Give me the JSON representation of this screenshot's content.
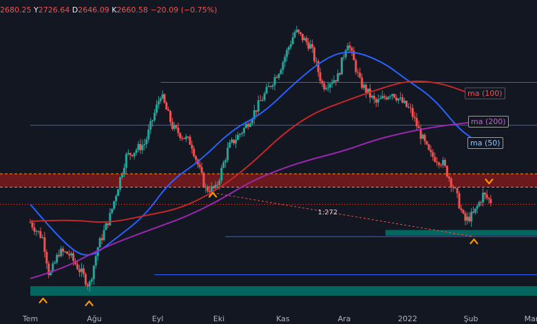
{
  "ohlc_header": {
    "o_value": "2680.25",
    "h_label": "Y",
    "h_value": "2726.64",
    "l_label": "D",
    "l_value": "2646.09",
    "c_label": "K",
    "c_value": "2660.58",
    "change": "−20.09 (−0.75%)"
  },
  "colors": {
    "background": "#131722",
    "up": "#26a69a",
    "down": "#ef5350",
    "ma50": "#2962ff",
    "ma100": "#c62828",
    "ma200": "#9c27b0",
    "resistance_zone": "#b71c1c",
    "support_zone": "#00897b",
    "marker": "#ff9800",
    "hline": "#2962ff"
  },
  "chart_data": {
    "type": "candlestick",
    "x_ticks": [
      "Tem",
      "Ağu",
      "Eyl",
      "Eki",
      "Kas",
      "Ara",
      "2022",
      "Şub",
      "Mar"
    ],
    "x_tick_months": [
      0,
      1,
      2,
      3,
      4,
      5,
      6,
      7,
      8
    ],
    "ylim": [
      1560,
      3080
    ],
    "price_key": [
      {
        "m": 0.0,
        "p": 1985
      },
      {
        "m": 0.2,
        "p": 1900
      },
      {
        "m": 0.3,
        "p": 1700
      },
      {
        "m": 0.45,
        "p": 1830
      },
      {
        "m": 0.6,
        "p": 1820
      },
      {
        "m": 0.8,
        "p": 1720
      },
      {
        "m": 0.92,
        "p": 1650
      },
      {
        "m": 1.05,
        "p": 1850
      },
      {
        "m": 1.25,
        "p": 2020
      },
      {
        "m": 1.5,
        "p": 2330
      },
      {
        "m": 1.8,
        "p": 2400
      },
      {
        "m": 2.05,
        "p": 2660
      },
      {
        "m": 2.25,
        "p": 2480
      },
      {
        "m": 2.55,
        "p": 2400
      },
      {
        "m": 2.78,
        "p": 2160
      },
      {
        "m": 2.95,
        "p": 2160
      },
      {
        "m": 3.15,
        "p": 2380
      },
      {
        "m": 3.4,
        "p": 2480
      },
      {
        "m": 3.65,
        "p": 2620
      },
      {
        "m": 3.95,
        "p": 2790
      },
      {
        "m": 4.2,
        "p": 2990
      },
      {
        "m": 4.45,
        "p": 2910
      },
      {
        "m": 4.65,
        "p": 2700
      },
      {
        "m": 4.9,
        "p": 2750
      },
      {
        "m": 5.05,
        "p": 2940
      },
      {
        "m": 5.25,
        "p": 2720
      },
      {
        "m": 5.5,
        "p": 2610
      },
      {
        "m": 5.75,
        "p": 2670
      },
      {
        "m": 6.05,
        "p": 2570
      },
      {
        "m": 6.2,
        "p": 2450
      },
      {
        "m": 6.35,
        "p": 2340
      },
      {
        "m": 6.55,
        "p": 2300
      },
      {
        "m": 6.75,
        "p": 2150
      },
      {
        "m": 6.9,
        "p": 1990
      },
      {
        "m": 7.05,
        "p": 2030
      },
      {
        "m": 7.2,
        "p": 2130
      },
      {
        "m": 7.35,
        "p": 2090
      }
    ],
    "series": [
      {
        "name": "ma (50)",
        "color": "#2962ff",
        "points": [
          {
            "m": 0.0,
            "p": 2080
          },
          {
            "m": 0.5,
            "p": 1880
          },
          {
            "m": 0.9,
            "p": 1790
          },
          {
            "m": 1.3,
            "p": 1890
          },
          {
            "m": 1.8,
            "p": 2020
          },
          {
            "m": 2.2,
            "p": 2200
          },
          {
            "m": 2.7,
            "p": 2310
          },
          {
            "m": 3.2,
            "p": 2470
          },
          {
            "m": 3.7,
            "p": 2560
          },
          {
            "m": 4.2,
            "p": 2720
          },
          {
            "m": 4.7,
            "p": 2850
          },
          {
            "m": 5.1,
            "p": 2890
          },
          {
            "m": 5.6,
            "p": 2830
          },
          {
            "m": 6.0,
            "p": 2730
          },
          {
            "m": 6.4,
            "p": 2640
          },
          {
            "m": 6.8,
            "p": 2480
          },
          {
            "m": 7.0,
            "p": 2430
          }
        ]
      },
      {
        "name": "ma (100)",
        "color": "#c62828",
        "points": [
          {
            "m": 0.0,
            "p": 1990
          },
          {
            "m": 0.6,
            "p": 2000
          },
          {
            "m": 1.2,
            "p": 1980
          },
          {
            "m": 1.8,
            "p": 2020
          },
          {
            "m": 2.4,
            "p": 2060
          },
          {
            "m": 3.0,
            "p": 2160
          },
          {
            "m": 3.5,
            "p": 2290
          },
          {
            "m": 4.0,
            "p": 2450
          },
          {
            "m": 4.5,
            "p": 2560
          },
          {
            "m": 5.0,
            "p": 2620
          },
          {
            "m": 5.5,
            "p": 2680
          },
          {
            "m": 6.0,
            "p": 2730
          },
          {
            "m": 6.5,
            "p": 2720
          },
          {
            "m": 7.0,
            "p": 2660
          }
        ]
      },
      {
        "name": "ma (200)",
        "color": "#9c27b0",
        "points": [
          {
            "m": 0.0,
            "p": 1690
          },
          {
            "m": 0.5,
            "p": 1740
          },
          {
            "m": 1.0,
            "p": 1830
          },
          {
            "m": 1.5,
            "p": 1900
          },
          {
            "m": 2.0,
            "p": 1960
          },
          {
            "m": 2.5,
            "p": 2020
          },
          {
            "m": 3.0,
            "p": 2100
          },
          {
            "m": 3.5,
            "p": 2200
          },
          {
            "m": 4.0,
            "p": 2270
          },
          {
            "m": 4.5,
            "p": 2320
          },
          {
            "m": 5.0,
            "p": 2360
          },
          {
            "m": 5.5,
            "p": 2420
          },
          {
            "m": 6.0,
            "p": 2460
          },
          {
            "m": 6.5,
            "p": 2490
          },
          {
            "m": 7.0,
            "p": 2510
          }
        ]
      }
    ],
    "resistance_zone": [
      2170,
      2240
    ],
    "support_zones": [
      {
        "from_month": 0.0,
        "to_month": 8.8,
        "range": [
          1600,
          1650
        ]
      },
      {
        "from_month": 5.65,
        "to_month": 8.8,
        "range": [
          1915,
          1945
        ]
      }
    ],
    "hlines": [
      {
        "from_month": 2.05,
        "p": 2720
      },
      {
        "from_month": 0.0,
        "p": 2495
      },
      {
        "from_month": 3.1,
        "p": 1910
      },
      {
        "from_month": 1.95,
        "p": 1710
      }
    ],
    "fib_line": {
      "from": {
        "m": 2.9,
        "p": 2140
      },
      "to": {
        "m": 7.05,
        "p": 1910
      },
      "label": "1.272"
    },
    "markers": [
      {
        "m": 0.2,
        "p": 1575,
        "dir": "up"
      },
      {
        "m": 0.92,
        "p": 1560,
        "dir": "up"
      },
      {
        "m": 2.9,
        "p": 2130,
        "dir": "up"
      },
      {
        "m": 7.05,
        "p": 1885,
        "dir": "up"
      },
      {
        "m": 7.3,
        "p": 2200,
        "dir": "down"
      }
    ]
  }
}
